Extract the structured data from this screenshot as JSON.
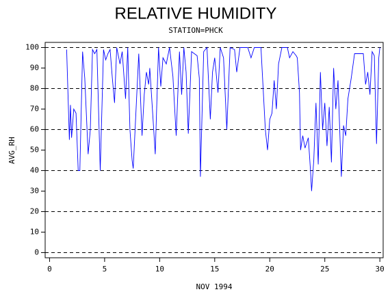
{
  "chart_data": {
    "type": "line",
    "title": "RELATIVE HUMIDITY",
    "subtitle": "STATION=PHCK",
    "x_label": "NOV 1994",
    "y_label": "AVG_RH",
    "xlim": [
      -0.4,
      30.3
    ],
    "ylim": [
      -2.5,
      102.5
    ],
    "xticks": [
      0,
      5,
      10,
      15,
      20,
      25,
      30
    ],
    "yticks": [
      0,
      10,
      20,
      30,
      40,
      50,
      60,
      70,
      80,
      90,
      100
    ],
    "ygrid": [
      0,
      20,
      40,
      60,
      80,
      100
    ],
    "series": [
      {
        "color": "#0000ff",
        "x": [
          1.55,
          1.8,
          1.9,
          2.0,
          2.2,
          2.4,
          2.6,
          2.75,
          3.0,
          3.2,
          3.5,
          3.7,
          3.9,
          4.1,
          4.3,
          4.6,
          4.9,
          5.1,
          5.3,
          5.5,
          5.7,
          5.9,
          6.1,
          6.4,
          6.6,
          6.9,
          7.1,
          7.3,
          7.5,
          7.6,
          7.9,
          8.1,
          8.4,
          8.6,
          8.8,
          9.0,
          9.1,
          9.4,
          9.6,
          9.9,
          10.1,
          10.3,
          10.6,
          10.9,
          11.2,
          11.5,
          11.8,
          12.0,
          12.2,
          12.4,
          12.6,
          12.9,
          13.4,
          13.6,
          13.7,
          14.0,
          14.3,
          14.6,
          14.8,
          15.0,
          15.3,
          15.5,
          15.8,
          16.1,
          16.4,
          16.8,
          17.0,
          17.3,
          18.0,
          18.3,
          18.6,
          19.2,
          19.6,
          19.8,
          20.0,
          20.2,
          20.4,
          20.6,
          20.8,
          21.1,
          21.6,
          21.8,
          22.1,
          22.4,
          22.5,
          22.7,
          22.8,
          23.0,
          23.2,
          23.5,
          23.7,
          23.8,
          24.0,
          24.2,
          24.4,
          24.6,
          24.8,
          25.0,
          25.2,
          25.4,
          25.6,
          25.8,
          26.0,
          26.2,
          26.5,
          26.7,
          26.9,
          27.1,
          27.4,
          27.7,
          28.5,
          28.7,
          28.9,
          29.1,
          29.3,
          29.5,
          29.7,
          29.9,
          30.0
        ],
        "values": [
          99,
          55,
          72,
          56,
          70,
          68,
          40,
          40,
          98,
          85,
          48,
          60,
          99,
          97,
          99,
          40,
          99,
          94,
          97,
          99,
          85,
          73,
          100,
          92,
          98,
          75,
          100,
          60,
          45,
          41,
          75,
          97,
          57,
          77,
          88,
          82,
          90,
          65,
          48,
          100,
          81,
          95,
          92,
          100,
          86,
          57,
          98,
          77,
          100,
          88,
          58,
          98,
          96,
          85,
          37,
          98,
          100,
          65,
          88,
          95,
          78,
          100,
          95,
          60,
          100,
          99,
          88,
          100,
          100,
          95,
          100,
          100,
          60,
          50,
          65,
          68,
          84,
          70,
          92,
          100,
          100,
          95,
          98,
          96,
          95,
          78,
          50,
          57,
          51,
          56,
          40,
          30,
          45,
          73,
          43,
          88,
          60,
          73,
          52,
          71,
          44,
          90,
          70,
          84,
          37,
          62,
          57,
          75,
          85,
          97,
          97,
          82,
          88,
          77,
          98,
          96,
          53,
          95,
          100
        ]
      }
    ]
  }
}
